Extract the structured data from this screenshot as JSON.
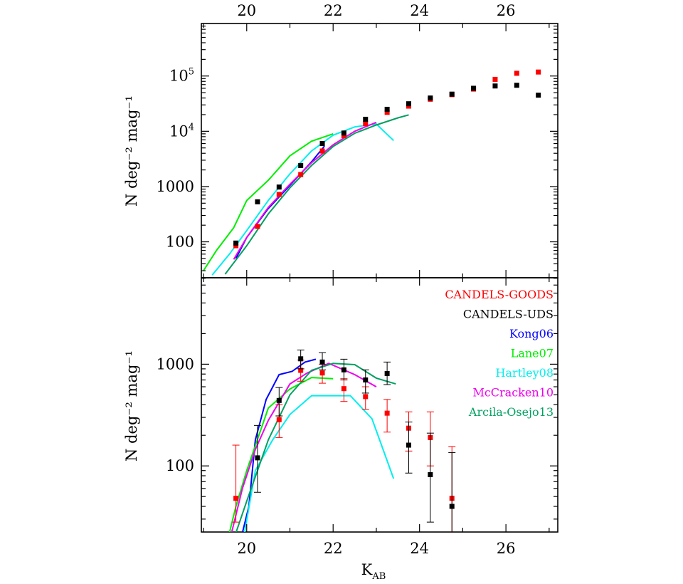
{
  "chart_data": [
    {
      "type": "line",
      "panel": "top",
      "ylabel": "N deg⁻² mag⁻¹",
      "xlabel_top_ticks": [
        "20",
        "22",
        "24",
        "26"
      ],
      "xlim": [
        18.95,
        27.2
      ],
      "ylim_log10": [
        1.35,
        5.95
      ],
      "yscale": "log",
      "yticks": [
        {
          "value": 100,
          "label": "100"
        },
        {
          "value": 1000,
          "label": "1000"
        },
        {
          "value": 10000,
          "label": "10",
          "sup": "4"
        },
        {
          "value": 100000,
          "label": "10",
          "sup": "5"
        }
      ],
      "points": [
        {
          "name": "CANDELS-GOODS",
          "color": "#ff0000",
          "x": [
            19.75,
            20.25,
            20.75,
            21.25,
            21.75,
            22.25,
            22.75,
            23.25,
            23.75,
            24.25,
            24.75,
            25.25,
            25.75,
            26.25,
            26.75
          ],
          "y": [
            85,
            190,
            720,
            1650,
            4400,
            8300,
            13700,
            22000,
            28500,
            38000,
            46000,
            58000,
            87000,
            112000,
            118000
          ]
        },
        {
          "name": "CANDELS-UDS",
          "color": "#000000",
          "x": [
            19.75,
            20.25,
            20.75,
            21.25,
            21.75,
            22.25,
            22.75,
            23.25,
            23.75,
            24.25,
            24.75,
            25.25,
            25.75,
            26.25,
            26.75
          ],
          "y": [
            95,
            530,
            980,
            2400,
            6000,
            9300,
            16500,
            25000,
            31500,
            40000,
            47000,
            60000,
            66000,
            68000,
            45000
          ]
        }
      ],
      "lines": [
        {
          "name": "Kong06",
          "color": "#0000ff",
          "x": [
            19.75,
            20.0,
            20.5,
            21.0,
            21.5,
            21.8
          ],
          "y": [
            50,
            120,
            400,
            1050,
            2800,
            5400
          ]
        },
        {
          "name": "Lane07",
          "color": "#00ee00",
          "x": [
            19.0,
            19.3,
            19.7,
            20.0,
            20.5,
            21.0,
            21.5,
            22.0
          ],
          "y": [
            30,
            70,
            180,
            560,
            1300,
            3600,
            6600,
            9000
          ]
        },
        {
          "name": "Hartley08",
          "color": "#00eeee",
          "x": [
            19.2,
            19.6,
            20.0,
            20.5,
            21.0,
            21.5,
            22.0,
            22.5,
            23.0,
            23.4
          ],
          "y": [
            25,
            60,
            160,
            560,
            1700,
            4400,
            8500,
            12000,
            13600,
            6800
          ]
        },
        {
          "name": "McCracken10",
          "color": "#ee00ee",
          "x": [
            19.7,
            20.0,
            20.5,
            21.0,
            21.5,
            22.0,
            22.5,
            23.0
          ],
          "y": [
            48,
            120,
            420,
            1100,
            2700,
            5700,
            10000,
            14500
          ]
        },
        {
          "name": "Arcila-Osejo13",
          "color": "#00a060",
          "x": [
            19.5,
            20.0,
            20.5,
            21.0,
            21.5,
            22.0,
            22.5,
            23.0,
            23.5,
            23.75
          ],
          "y": [
            26,
            85,
            320,
            950,
            2400,
            5300,
            9200,
            13000,
            17500,
            19800
          ]
        }
      ]
    },
    {
      "type": "line",
      "panel": "bottom",
      "xlabel": "K",
      "xlabel_sub": "AB",
      "ylabel": "N deg⁻² mag⁻¹",
      "xticks": [
        "20",
        "22",
        "24",
        "26"
      ],
      "xlim": [
        18.95,
        27.2
      ],
      "ylim_log10": [
        1.35,
        3.85
      ],
      "yscale": "log",
      "yticks": [
        {
          "value": 100,
          "label": "100"
        },
        {
          "value": 1000,
          "label": "1000"
        }
      ],
      "points": [
        {
          "name": "CANDELS-GOODS",
          "color": "#ff0000",
          "x": [
            19.75,
            20.75,
            21.25,
            21.75,
            22.25,
            22.75,
            23.25,
            23.75,
            24.25,
            24.75
          ],
          "y": [
            48,
            285,
            870,
            820,
            575,
            480,
            330,
            235,
            190,
            48
          ],
          "err": [
            [
              28,
              160
            ],
            [
              190,
              400
            ],
            [
              680,
              1100
            ],
            [
              650,
              1000
            ],
            [
              430,
              720
            ],
            [
              360,
              600
            ],
            [
              215,
              450
            ],
            [
              140,
              340
            ],
            [
              100,
              340
            ],
            [
              20,
              155
            ]
          ]
        },
        {
          "name": "CANDELS-UDS",
          "color": "#000000",
          "x": [
            20.25,
            20.75,
            21.25,
            21.75,
            22.25,
            22.75,
            23.25,
            23.75,
            24.25,
            24.75
          ],
          "y": [
            120,
            440,
            1130,
            1050,
            880,
            700,
            810,
            160,
            82,
            40
          ],
          "err": [
            [
              55,
              250
            ],
            [
              310,
              590
            ],
            [
              900,
              1380
            ],
            [
              880,
              1300
            ],
            [
              700,
              1120
            ],
            [
              520,
              880
            ],
            [
              630,
              1050
            ],
            [
              85,
              270
            ],
            [
              28,
              210
            ],
            [
              10,
              135
            ]
          ]
        }
      ],
      "lines": [
        {
          "name": "Kong06",
          "color": "#0000ff",
          "x": [
            19.9,
            20.05,
            20.2,
            20.45,
            20.75,
            21.05,
            21.35,
            21.6
          ],
          "y": [
            22,
            40,
            180,
            450,
            790,
            850,
            1050,
            1120
          ]
        },
        {
          "name": "Lane07",
          "color": "#00ee00",
          "x": [
            19.6,
            19.75,
            20.0,
            20.5,
            21.0,
            21.5,
            22.0
          ],
          "y": [
            22,
            40,
            90,
            370,
            570,
            740,
            720
          ]
        },
        {
          "name": "Hartley08",
          "color": "#00eeee",
          "x": [
            19.95,
            20.2,
            20.6,
            21.0,
            21.5,
            22.0,
            22.4,
            22.9,
            23.4
          ],
          "y": [
            22,
            90,
            180,
            320,
            490,
            490,
            490,
            290,
            75
          ]
        },
        {
          "name": "McCracken10",
          "color": "#ee00ee",
          "x": [
            19.65,
            19.9,
            20.2,
            20.5,
            21.0,
            21.4,
            21.9,
            22.5,
            23.0
          ],
          "y": [
            22,
            60,
            145,
            280,
            640,
            820,
            1020,
            790,
            600
          ]
        },
        {
          "name": "Arcila-Osejo13",
          "color": "#00a060",
          "x": [
            19.75,
            20.0,
            20.5,
            21.0,
            21.5,
            22.0,
            22.5,
            23.0,
            23.45
          ],
          "y": [
            22,
            45,
            180,
            500,
            870,
            1020,
            990,
            730,
            640
          ]
        }
      ],
      "legend": {
        "placement": "top-right",
        "entries": [
          {
            "label": "CANDELS-GOODS",
            "color": "#ff0000"
          },
          {
            "label": "CANDELS-UDS",
            "color": "#000000"
          },
          {
            "label": "Kong06",
            "color": "#0000ff"
          },
          {
            "label": "Lane07",
            "color": "#00ee00"
          },
          {
            "label": "Hartley08",
            "color": "#00eeee"
          },
          {
            "label": "McCracken10",
            "color": "#ee00ee"
          },
          {
            "label": "Arcila-Osejo13",
            "color": "#00a060"
          }
        ]
      }
    }
  ]
}
